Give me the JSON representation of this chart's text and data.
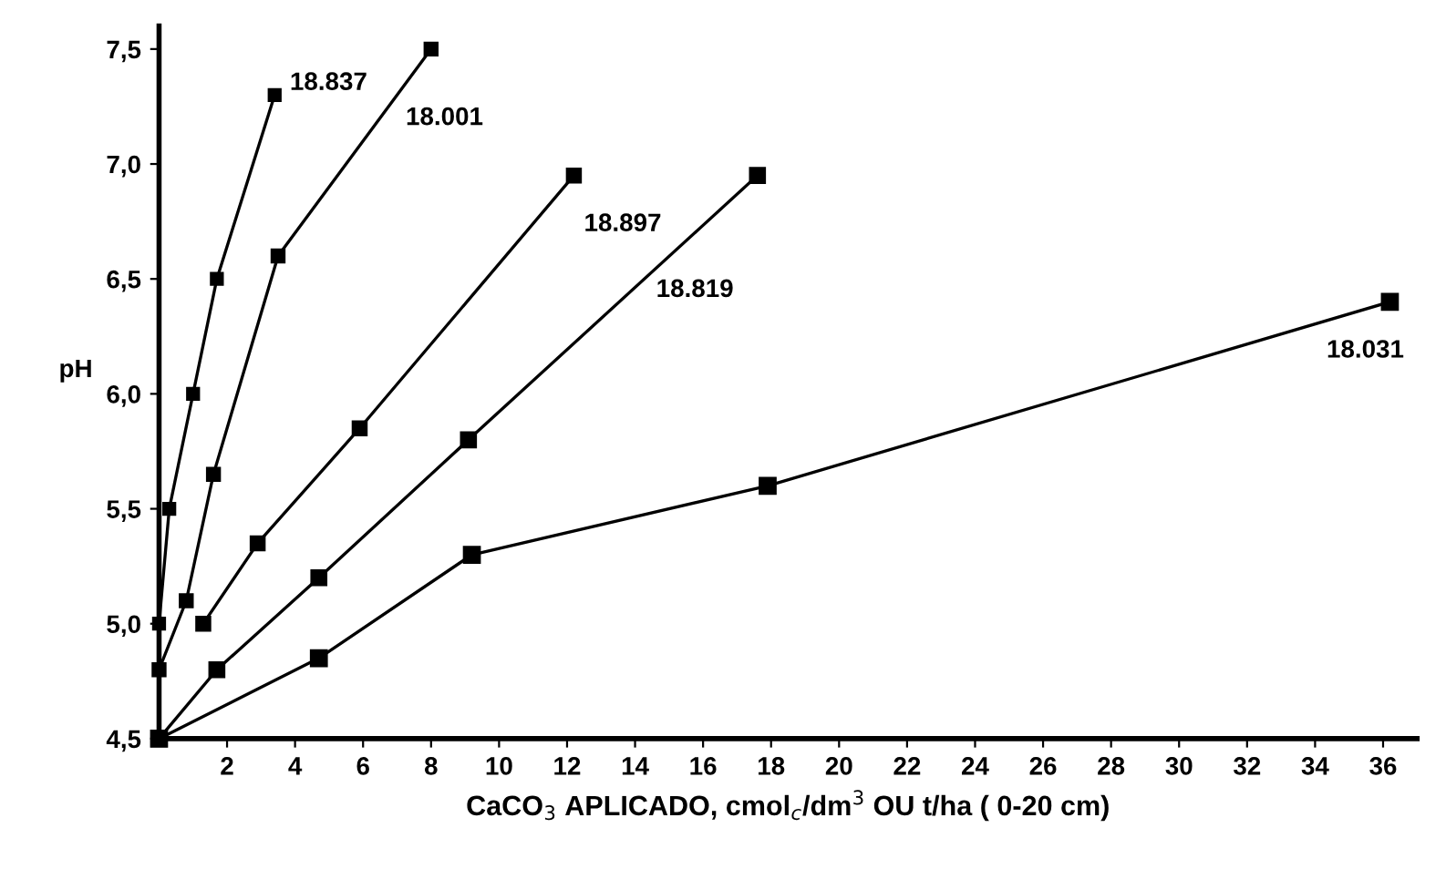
{
  "chart_data": {
    "type": "line",
    "xlabel": "CaCO$_{3}$ APLICADO, cmol$_{c}$/dm$^{3}$ OU t/ha ( 0-20 cm)",
    "ylabel": "pH",
    "xlim": [
      0,
      37
    ],
    "xticks": [
      2,
      4,
      6,
      8,
      10,
      12,
      14,
      16,
      18,
      20,
      22,
      24,
      26,
      28,
      30,
      32,
      34,
      36
    ],
    "ylim": [
      4.5,
      7.6
    ],
    "yticks": [
      {
        "value": 4.5,
        "label": "4,5"
      },
      {
        "value": 5.0,
        "label": "5,0"
      },
      {
        "value": 5.5,
        "label": "5,5"
      },
      {
        "value": 6.0,
        "label": "6,0"
      },
      {
        "value": 6.5,
        "label": "6,5"
      },
      {
        "value": 7.0,
        "label": "7,0"
      },
      {
        "value": 7.5,
        "label": "7,5"
      }
    ],
    "grid": false,
    "legend": false,
    "marker": "square",
    "line_style": "solid",
    "series": [
      {
        "name": "18.837",
        "color": "#000000",
        "x": [
          0,
          0.3,
          1.0,
          1.7,
          3.4
        ],
        "values": [
          5.0,
          5.5,
          6.0,
          6.5,
          7.3
        ]
      },
      {
        "name": "18.001",
        "color": "#000000",
        "x": [
          0,
          0.8,
          1.6,
          3.5,
          8.0
        ],
        "values": [
          4.8,
          5.1,
          5.65,
          6.6,
          7.5
        ]
      },
      {
        "name": "18.897",
        "color": "#000000",
        "x": [
          1.3,
          2.9,
          5.9,
          12.2
        ],
        "values": [
          5.0,
          5.35,
          5.85,
          6.95
        ]
      },
      {
        "name": "18.819",
        "color": "#000000",
        "x": [
          0,
          1.7,
          4.7,
          9.1,
          17.6
        ],
        "values": [
          4.5,
          4.8,
          5.2,
          5.8,
          6.95
        ]
      },
      {
        "name": "18.031",
        "color": "#000000",
        "x": [
          0,
          4.7,
          9.2,
          17.9,
          36.2
        ],
        "values": [
          4.5,
          4.85,
          5.3,
          5.6,
          6.4
        ]
      }
    ]
  }
}
